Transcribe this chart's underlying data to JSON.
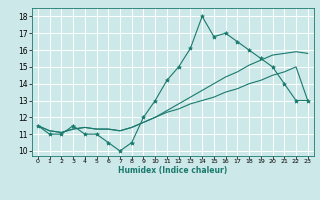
{
  "xlabel": "Humidex (Indice chaleur)",
  "bg_color": "#cde8e8",
  "grid_color": "#ffffff",
  "line_color": "#1a7a6e",
  "xlim": [
    -0.5,
    23.5
  ],
  "ylim": [
    9.7,
    18.5
  ],
  "xticks": [
    0,
    1,
    2,
    3,
    4,
    5,
    6,
    7,
    8,
    9,
    10,
    11,
    12,
    13,
    14,
    15,
    16,
    17,
    18,
    19,
    20,
    21,
    22,
    23
  ],
  "yticks": [
    10,
    11,
    12,
    13,
    14,
    15,
    16,
    17,
    18
  ],
  "x": [
    0,
    1,
    2,
    3,
    4,
    5,
    6,
    7,
    8,
    9,
    10,
    11,
    12,
    13,
    14,
    15,
    16,
    17,
    18,
    19,
    20,
    21,
    22,
    23
  ],
  "y_main": [
    11.5,
    11.0,
    11.0,
    11.5,
    11.0,
    11.0,
    10.5,
    10.0,
    10.5,
    12.0,
    13.0,
    14.2,
    15.0,
    16.1,
    18.0,
    16.8,
    17.0,
    16.5,
    16.0,
    15.5,
    15.0,
    14.0,
    13.0,
    13.0
  ],
  "y_trend1": [
    11.5,
    11.2,
    11.1,
    11.3,
    11.4,
    11.3,
    11.3,
    11.2,
    11.4,
    11.7,
    12.0,
    12.4,
    12.8,
    13.2,
    13.6,
    14.0,
    14.4,
    14.7,
    15.1,
    15.4,
    15.7,
    15.8,
    15.9,
    15.8
  ],
  "y_trend2": [
    11.5,
    11.2,
    11.1,
    11.3,
    11.4,
    11.3,
    11.3,
    11.2,
    11.4,
    11.7,
    12.0,
    12.3,
    12.5,
    12.8,
    13.0,
    13.2,
    13.5,
    13.7,
    14.0,
    14.2,
    14.5,
    14.7,
    15.0,
    13.0
  ]
}
